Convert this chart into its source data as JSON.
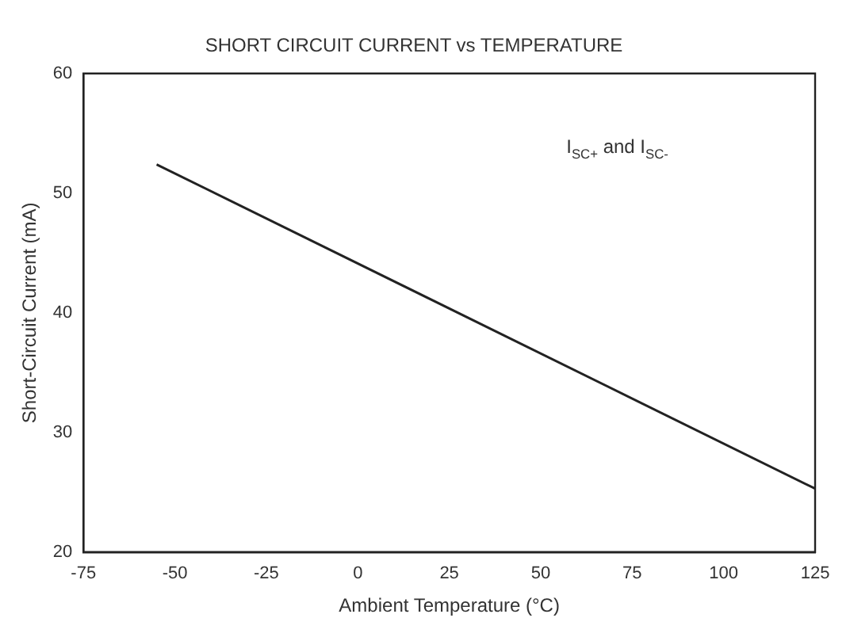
{
  "chart_data": {
    "type": "line",
    "title": "SHORT CIRCUIT CURRENT vs TEMPERATURE",
    "xlabel": "Ambient Temperature (°C)",
    "ylabel": "Short-Circuit Current (mA)",
    "annotations": [
      "I$_{SC+}$ and I$_{SC-}$"
    ],
    "series": [
      {
        "color": "#222222",
        "x": [
          -55,
          125
        ],
        "values": [
          52.4,
          25.3
        ]
      }
    ],
    "xlim": [
      -75,
      125
    ],
    "xticks": [
      -75,
      -50,
      -25,
      0,
      25,
      50,
      75,
      100,
      125
    ],
    "ylim": [
      20,
      60
    ],
    "yticks": [
      20,
      30,
      40,
      50,
      60
    ],
    "grid": false,
    "legend": false,
    "marker": "none",
    "line_style": "solid"
  }
}
